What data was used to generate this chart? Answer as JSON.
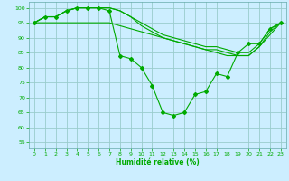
{
  "xlabel": "Humidité relative (%)",
  "background_color": "#cceeff",
  "grid_color": "#99cccc",
  "line_color": "#00aa00",
  "marker_color": "#00aa00",
  "xlim": [
    -0.5,
    23.5
  ],
  "ylim": [
    53,
    102
  ],
  "yticks": [
    55,
    60,
    65,
    70,
    75,
    80,
    85,
    90,
    95,
    100
  ],
  "xticks": [
    0,
    1,
    2,
    3,
    4,
    5,
    6,
    7,
    8,
    9,
    10,
    11,
    12,
    13,
    14,
    15,
    16,
    17,
    18,
    19,
    20,
    21,
    22,
    23
  ],
  "series": [
    {
      "x": [
        0,
        1,
        2,
        3,
        4,
        5,
        6,
        7,
        8,
        9,
        10,
        11,
        12,
        13,
        14,
        15,
        16,
        17,
        18,
        19,
        20,
        21,
        22,
        23
      ],
      "y": [
        95,
        97,
        97,
        99,
        100,
        100,
        100,
        100,
        99,
        97,
        95,
        93,
        91,
        90,
        89,
        88,
        87,
        87,
        86,
        85,
        85,
        88,
        93,
        95
      ],
      "has_markers": false
    },
    {
      "x": [
        0,
        1,
        2,
        3,
        4,
        5,
        6,
        7,
        8,
        9,
        10,
        11,
        12,
        13,
        14,
        15,
        16,
        17,
        18,
        19,
        20,
        21,
        22,
        23
      ],
      "y": [
        95,
        97,
        97,
        99,
        100,
        100,
        100,
        100,
        99,
        97,
        94,
        92,
        90,
        89,
        88,
        87,
        86,
        86,
        85,
        84,
        84,
        87,
        92,
        95
      ],
      "has_markers": false
    },
    {
      "x": [
        0,
        1,
        2,
        3,
        4,
        5,
        6,
        7,
        8,
        9,
        10,
        11,
        12,
        13,
        14,
        15,
        16,
        17,
        18,
        19,
        20,
        21,
        22,
        23
      ],
      "y": [
        95,
        95,
        95,
        95,
        95,
        95,
        95,
        95,
        94,
        93,
        92,
        91,
        90,
        89,
        88,
        87,
        86,
        85,
        84,
        84,
        84,
        87,
        91,
        95
      ],
      "has_markers": false
    },
    {
      "x": [
        0,
        1,
        2,
        3,
        4,
        5,
        6,
        7,
        8,
        9,
        10,
        11,
        12,
        13,
        14,
        15,
        16,
        17,
        18,
        19,
        20,
        21,
        22,
        23
      ],
      "y": [
        95,
        97,
        97,
        99,
        100,
        100,
        100,
        99,
        84,
        83,
        80,
        74,
        65,
        64,
        65,
        71,
        72,
        78,
        77,
        85,
        88,
        88,
        93,
        95
      ],
      "has_markers": true
    }
  ]
}
